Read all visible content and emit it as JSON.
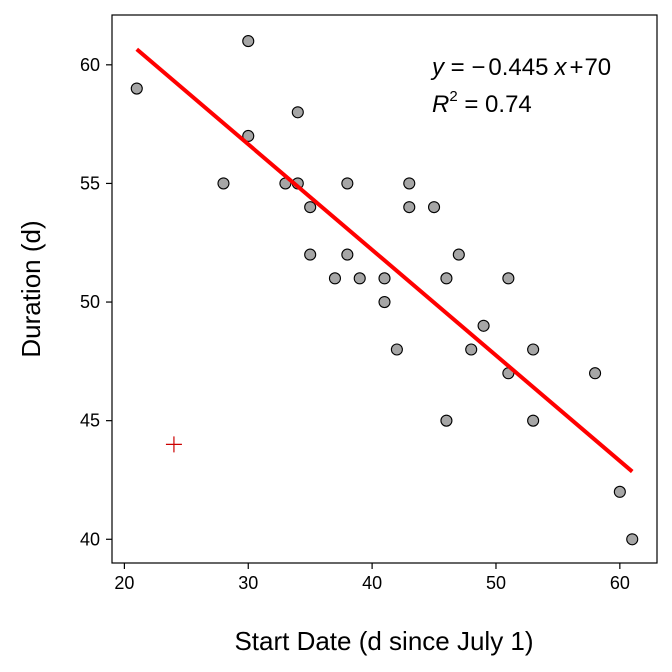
{
  "chart_data": {
    "type": "scatter",
    "title": "",
    "xlabel": "Start Date (d since July 1)",
    "ylabel": "Duration (d)",
    "xlim": [
      19,
      63
    ],
    "ylim": [
      39,
      62.1
    ],
    "xticks": [
      20,
      30,
      40,
      50,
      60
    ],
    "yticks": [
      40,
      45,
      50,
      55,
      60
    ],
    "grid": false,
    "series": [
      {
        "kind": "points",
        "marker": "circle",
        "fill": "#a6a6a6",
        "stroke": "#000000",
        "x": [
          21,
          28,
          30,
          30,
          33,
          34,
          34,
          35,
          35,
          37,
          38,
          38,
          39,
          41,
          41,
          42,
          43,
          43,
          45,
          46,
          46,
          47,
          48,
          49,
          51,
          51,
          53,
          53,
          58,
          60,
          61
        ],
        "y": [
          59,
          55,
          61,
          57,
          55,
          58,
          55,
          54,
          52,
          51,
          55,
          52,
          51,
          51,
          50,
          48,
          55,
          54,
          54,
          51,
          45,
          52,
          48,
          49,
          51,
          47,
          48,
          45,
          47,
          42,
          40
        ]
      },
      {
        "kind": "fit-line",
        "color": "#ff0000",
        "slope": -0.445,
        "intercept": 70,
        "x_range": [
          21,
          61
        ]
      },
      {
        "kind": "highlight-point",
        "marker": "plus",
        "color": "#cc0000",
        "x": 24,
        "y": 44
      }
    ],
    "annotation": {
      "y_var": "y",
      "equals": " = ",
      "minus": "−",
      "slope": "0.445",
      "x_var": "x",
      "plus": "+",
      "intercept": "70",
      "r_var": "R",
      "r_exp": "2",
      "r_value": "0.74"
    }
  }
}
